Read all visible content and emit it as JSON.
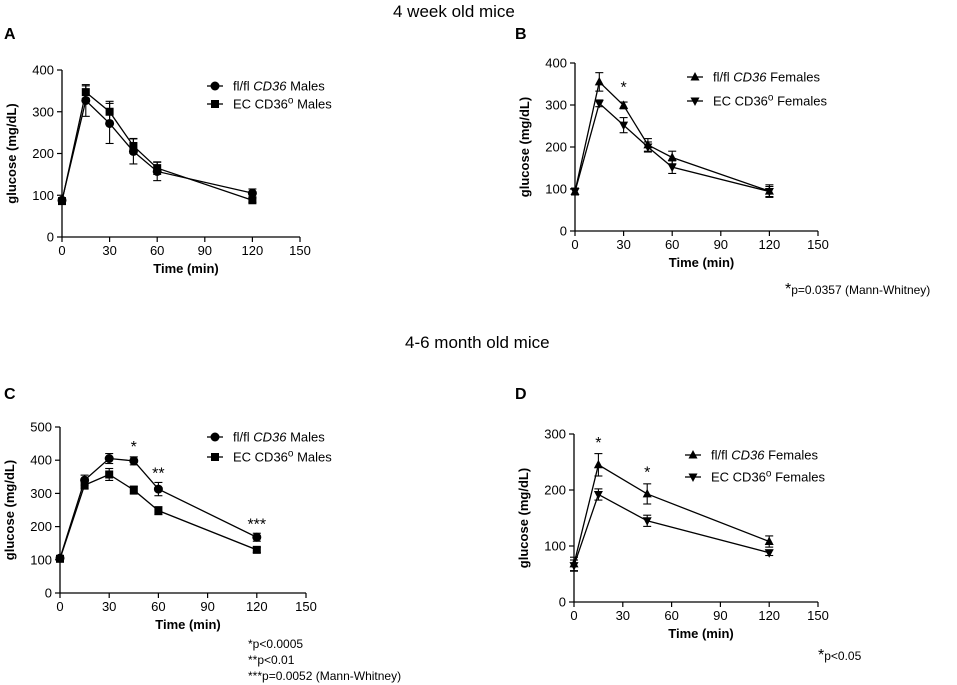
{
  "section_titles": [
    "4 week old mice",
    "4-6 month old mice"
  ],
  "notes": {
    "B": [
      "*",
      "p=0.0357 (Mann-Whitney)"
    ],
    "C": [
      [
        "*",
        "p<0.0005"
      ],
      [
        "**",
        "p<0.01"
      ],
      [
        "***",
        "p=0.0052 (Mann-Whitney)"
      ]
    ],
    "D": [
      "*",
      "p<0.05"
    ]
  },
  "chart_data": [
    {
      "panel": "A",
      "type": "line",
      "xlabel": "Time (min)",
      "ylabel": "glucose (mg/dL)",
      "xlim": [
        0,
        150
      ],
      "ylim": [
        0,
        400
      ],
      "xticks": [
        0,
        30,
        60,
        90,
        120,
        150
      ],
      "yticks": [
        0,
        100,
        200,
        300,
        400
      ],
      "x": [
        0,
        15,
        30,
        45,
        60,
        120
      ],
      "series": [
        {
          "name": "fl/fl CD36 Males",
          "label_parts": [
            "fl/fl ",
            "CD36",
            " Males"
          ],
          "marker": "circle",
          "values": [
            88,
            327,
            272,
            205,
            157,
            105
          ],
          "errors": [
            4,
            38,
            48,
            30,
            22,
            10
          ]
        },
        {
          "name": "EC CD36o Males",
          "label_parts": [
            "EC CD36",
            "o",
            " Males"
          ],
          "marker": "square",
          "values": [
            86,
            347,
            300,
            218,
            165,
            88
          ],
          "errors": [
            4,
            15,
            25,
            18,
            15,
            5
          ]
        }
      ],
      "annotations": []
    },
    {
      "panel": "B",
      "type": "line",
      "xlabel": "Time (min)",
      "ylabel": "glucose (mg/dL)",
      "xlim": [
        0,
        150
      ],
      "ylim": [
        0,
        400
      ],
      "xticks": [
        0,
        30,
        60,
        90,
        120,
        150
      ],
      "yticks": [
        0,
        100,
        200,
        300,
        400
      ],
      "x": [
        0,
        15,
        30,
        45,
        60,
        120
      ],
      "series": [
        {
          "name": "fl/fl CD36 Females",
          "label_parts": [
            "fl/fl ",
            "CD36",
            " Females"
          ],
          "marker": "triangle-up",
          "values": [
            94,
            355,
            299,
            205,
            175,
            95
          ],
          "errors": [
            8,
            22,
            8,
            15,
            15,
            15
          ]
        },
        {
          "name": "EC CD36o Females",
          "label_parts": [
            "EC CD36",
            "o",
            " Females"
          ],
          "marker": "triangle-down",
          "values": [
            94,
            304,
            252,
            200,
            152,
            94
          ],
          "errors": [
            8,
            8,
            18,
            12,
            15,
            12
          ]
        }
      ],
      "annotations": [
        {
          "x": 30,
          "y": 330,
          "text": "*"
        }
      ]
    },
    {
      "panel": "C",
      "type": "line",
      "xlabel": "Time (min)",
      "ylabel": "glucose (mg/dL)",
      "xlim": [
        0,
        150
      ],
      "ylim": [
        0,
        500
      ],
      "xticks": [
        0,
        30,
        60,
        90,
        120,
        150
      ],
      "yticks": [
        0,
        100,
        200,
        300,
        400,
        500
      ],
      "x": [
        0,
        15,
        30,
        45,
        60,
        120
      ],
      "series": [
        {
          "name": "fl/fl CD36 Males",
          "label_parts": [
            "fl/fl ",
            "CD36",
            " Males"
          ],
          "marker": "circle",
          "values": [
            105,
            340,
            405,
            398,
            313,
            168
          ],
          "errors": [
            5,
            15,
            15,
            12,
            20,
            12
          ]
        },
        {
          "name": "EC CD36o Males",
          "label_parts": [
            "EC CD36",
            "o",
            " Males"
          ],
          "marker": "square",
          "values": [
            103,
            325,
            357,
            310,
            248,
            130
          ],
          "errors": [
            5,
            12,
            18,
            12,
            12,
            8
          ]
        }
      ],
      "annotations": [
        {
          "x": 45,
          "y": 425,
          "text": "*"
        },
        {
          "x": 60,
          "y": 345,
          "text": "**"
        },
        {
          "x": 120,
          "y": 192,
          "text": "***"
        }
      ]
    },
    {
      "panel": "D",
      "type": "line",
      "xlabel": "Time (min)",
      "ylabel": "glucose (mg/dL)",
      "xlim": [
        0,
        150
      ],
      "ylim": [
        0,
        300
      ],
      "xticks": [
        0,
        30,
        60,
        90,
        120,
        150
      ],
      "yticks": [
        0,
        100,
        200,
        300
      ],
      "x": [
        0,
        15,
        45,
        120
      ],
      "series": [
        {
          "name": "fl/fl CD36 Females",
          "label_parts": [
            "fl/fl ",
            "CD36",
            " Females"
          ],
          "marker": "triangle-up",
          "values": [
            68,
            245,
            193,
            108
          ],
          "errors": [
            12,
            20,
            18,
            10
          ]
        },
        {
          "name": "EC CD36o Females",
          "label_parts": [
            "EC CD36",
            "o",
            " Females"
          ],
          "marker": "triangle-down",
          "values": [
            65,
            192,
            145,
            88
          ],
          "errors": [
            10,
            10,
            10,
            5
          ]
        }
      ],
      "annotations": [
        {
          "x": 15,
          "y": 275,
          "text": "*"
        },
        {
          "x": 45,
          "y": 222,
          "text": "*"
        }
      ]
    }
  ]
}
